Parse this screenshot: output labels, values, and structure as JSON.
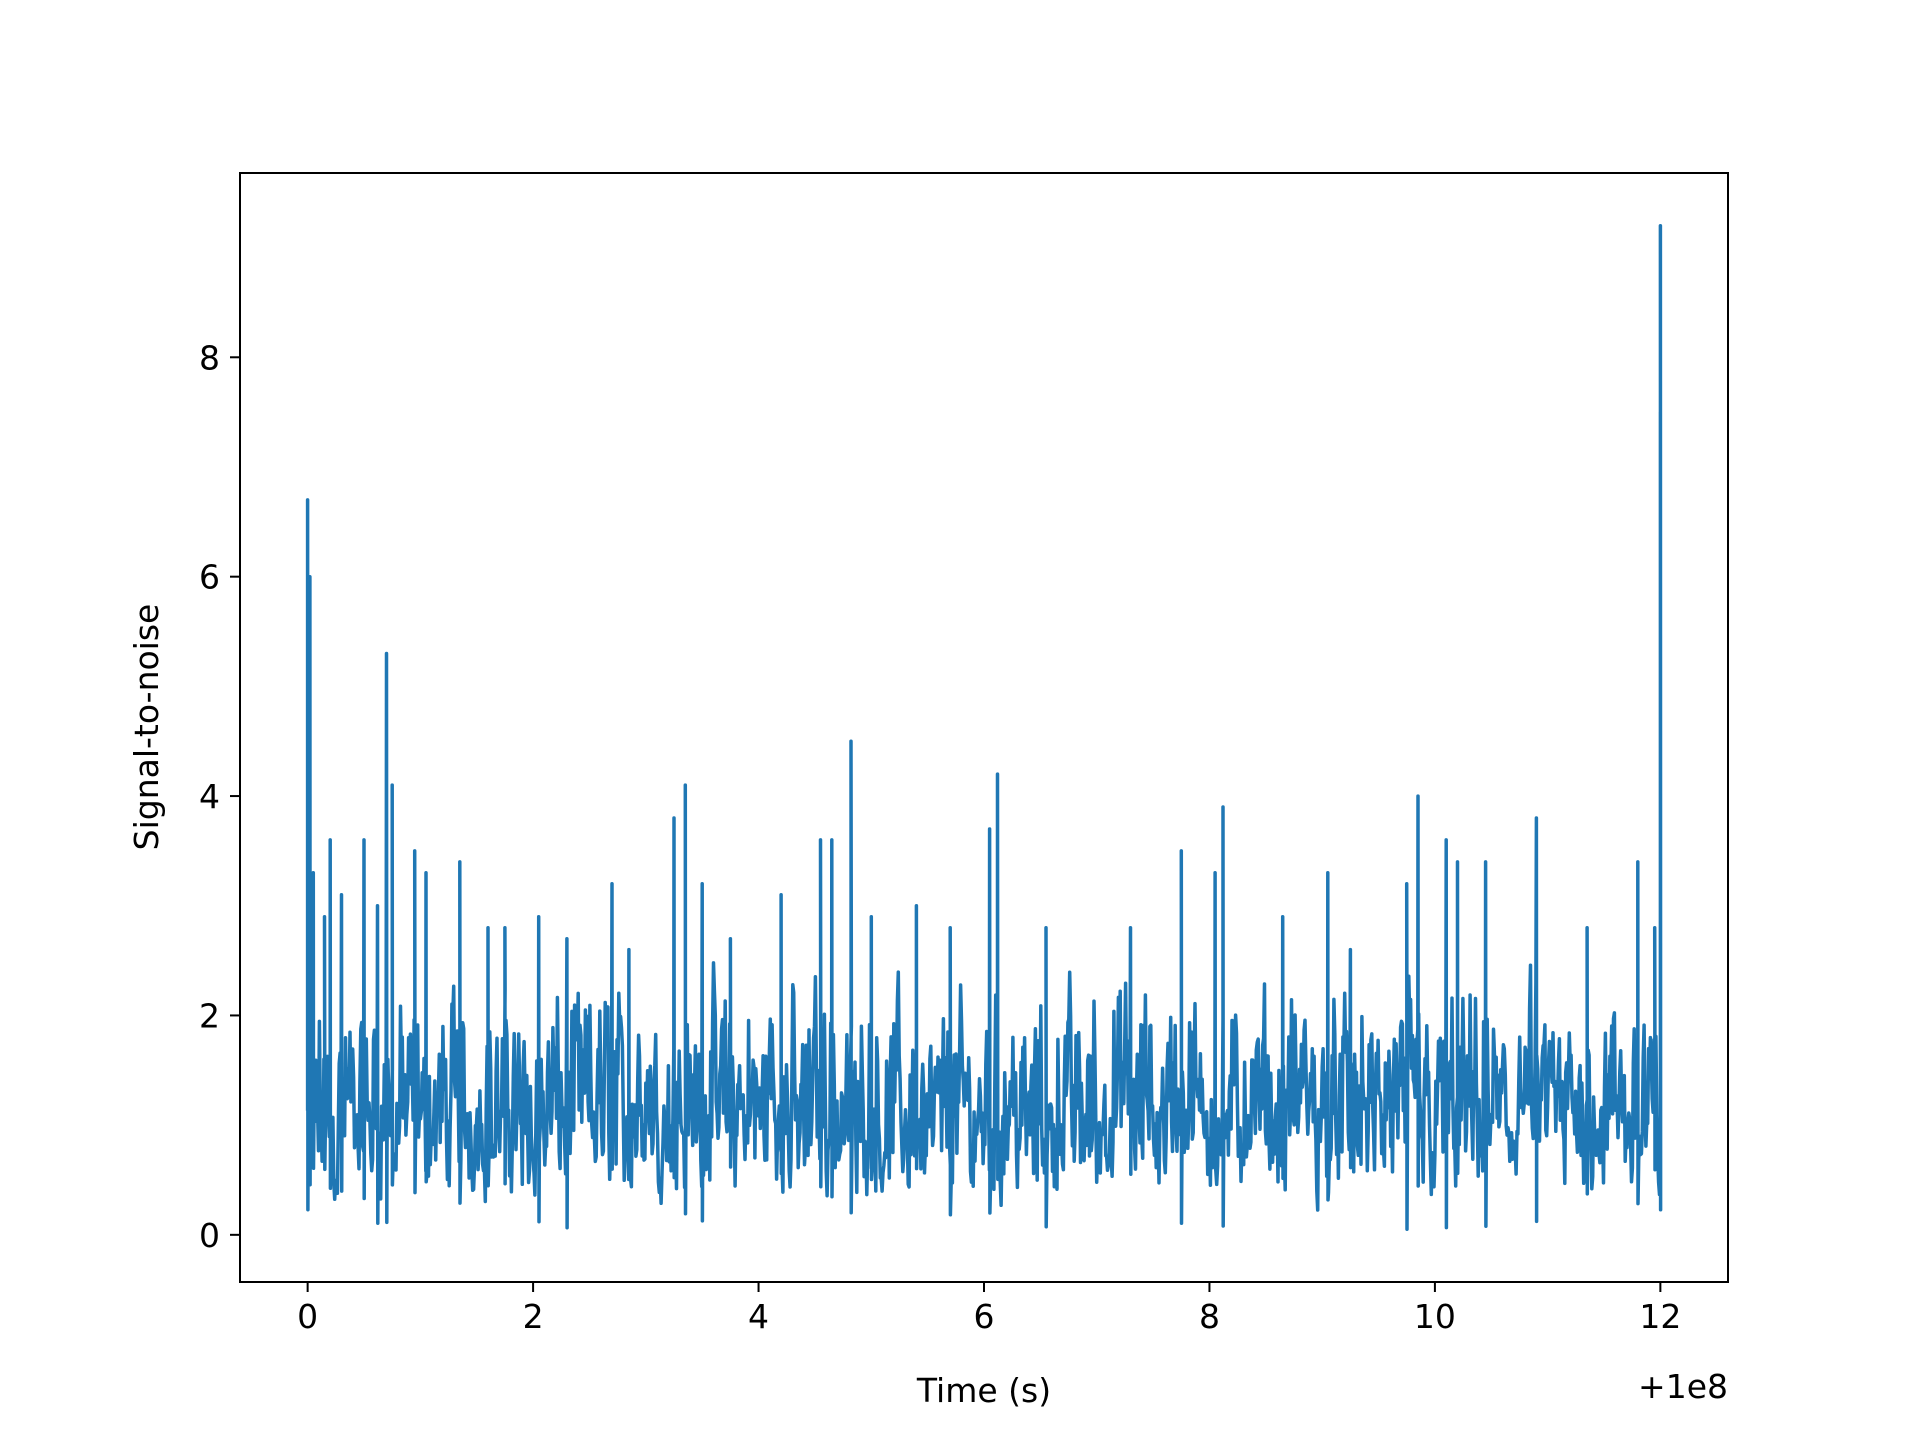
{
  "chart_data": {
    "type": "line",
    "title": "",
    "xlabel": "Time (s)",
    "ylabel": "Signal-to-noise",
    "x_offset_label": "+1e8",
    "xlim": [
      -0.6,
      12.6
    ],
    "ylim": [
      -0.43,
      9.68
    ],
    "xticks": [
      0,
      2,
      4,
      6,
      8,
      10,
      12
    ],
    "xtick_labels": [
      "0",
      "2",
      "4",
      "6",
      "8",
      "10",
      "12"
    ],
    "yticks": [
      0,
      2,
      4,
      6,
      8
    ],
    "ytick_labels": [
      "0",
      "2",
      "4",
      "6",
      "8"
    ],
    "grid": false,
    "legend": "none",
    "series_color": "#1f77b4",
    "series": [
      {
        "x_range": [
          0,
          12
        ],
        "baseline_range": [
          0.05,
          2.9
        ],
        "peaks": [
          [
            0.0,
            6.7
          ],
          [
            0.02,
            6.0
          ],
          [
            0.05,
            3.3
          ],
          [
            0.15,
            2.9
          ],
          [
            0.2,
            3.6
          ],
          [
            0.3,
            3.1
          ],
          [
            0.5,
            3.6
          ],
          [
            0.62,
            3.0
          ],
          [
            0.7,
            5.3
          ],
          [
            0.75,
            4.1
          ],
          [
            0.95,
            3.5
          ],
          [
            1.05,
            3.3
          ],
          [
            1.35,
            3.4
          ],
          [
            1.6,
            2.8
          ],
          [
            1.75,
            2.8
          ],
          [
            2.05,
            2.9
          ],
          [
            2.3,
            2.7
          ],
          [
            2.7,
            3.2
          ],
          [
            2.85,
            2.6
          ],
          [
            3.25,
            3.8
          ],
          [
            3.35,
            4.1
          ],
          [
            3.5,
            3.2
          ],
          [
            3.75,
            2.7
          ],
          [
            4.2,
            3.1
          ],
          [
            4.55,
            3.6
          ],
          [
            4.65,
            3.6
          ],
          [
            4.82,
            4.5
          ],
          [
            5.0,
            2.9
          ],
          [
            5.4,
            3.0
          ],
          [
            5.7,
            2.8
          ],
          [
            6.05,
            3.7
          ],
          [
            6.12,
            4.2
          ],
          [
            6.55,
            2.8
          ],
          [
            7.3,
            2.8
          ],
          [
            7.75,
            3.5
          ],
          [
            8.05,
            3.3
          ],
          [
            8.12,
            3.9
          ],
          [
            8.65,
            2.9
          ],
          [
            9.05,
            3.3
          ],
          [
            9.25,
            2.6
          ],
          [
            9.75,
            3.2
          ],
          [
            9.85,
            4.0
          ],
          [
            10.1,
            3.6
          ],
          [
            10.2,
            3.4
          ],
          [
            10.45,
            3.4
          ],
          [
            10.9,
            3.8
          ],
          [
            11.35,
            2.8
          ],
          [
            11.8,
            3.4
          ],
          [
            11.95,
            2.8
          ],
          [
            12.0,
            9.2
          ],
          [
            12.0,
            7.5
          ]
        ]
      }
    ]
  }
}
